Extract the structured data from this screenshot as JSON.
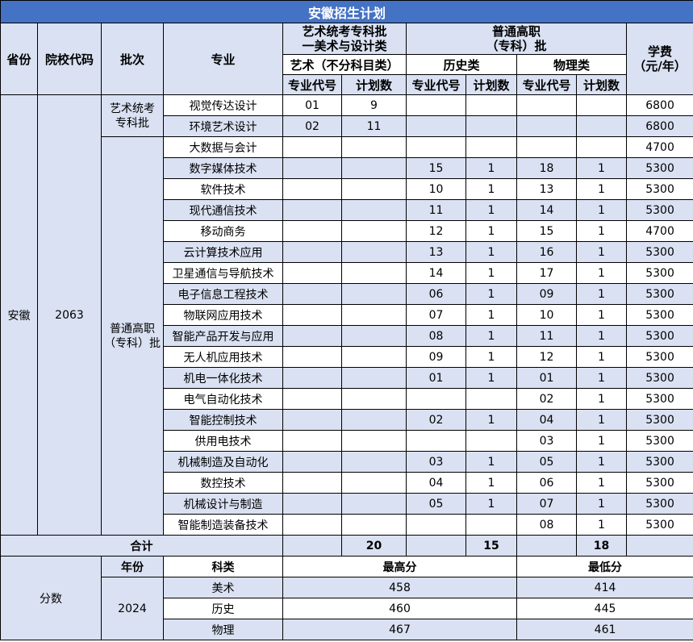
{
  "title": "安徽招生计划",
  "headers": {
    "province": "省份",
    "code": "院校代码",
    "batch": "批次",
    "major": "专业",
    "art_batch": "艺术统考专科批\n一美术与设计类",
    "general_batch": "普通高职\n（专科）批",
    "fee": "学费\n（元/年）",
    "art_sub": "艺术（不分科目类）",
    "history": "历史类",
    "physics": "物理类",
    "major_code": "专业代号",
    "plan": "计划数"
  },
  "province": "安徽",
  "school_code": "2063",
  "batches": [
    "艺术统考\n专科批",
    "普通高职\n（专科）批"
  ],
  "rows": [
    [
      "视觉传达设计",
      "01",
      "9",
      "",
      "",
      "",
      "",
      "6800"
    ],
    [
      "环境艺术设计",
      "02",
      "11",
      "",
      "",
      "",
      "",
      "6800"
    ],
    [
      "大数据与会计",
      "",
      "",
      "",
      "",
      "",
      "",
      "4700"
    ],
    [
      "数字媒体技术",
      "",
      "",
      "15",
      "1",
      "18",
      "1",
      "5300"
    ],
    [
      "软件技术",
      "",
      "",
      "10",
      "1",
      "13",
      "1",
      "5300"
    ],
    [
      "现代通信技术",
      "",
      "",
      "11",
      "1",
      "14",
      "1",
      "5300"
    ],
    [
      "移动商务",
      "",
      "",
      "12",
      "1",
      "15",
      "1",
      "4700"
    ],
    [
      "云计算技术应用",
      "",
      "",
      "13",
      "1",
      "16",
      "1",
      "5300"
    ],
    [
      "卫星通信与导航技术",
      "",
      "",
      "14",
      "1",
      "17",
      "1",
      "5300"
    ],
    [
      "电子信息工程技术",
      "",
      "",
      "06",
      "1",
      "09",
      "1",
      "5300"
    ],
    [
      "物联网应用技术",
      "",
      "",
      "07",
      "1",
      "10",
      "1",
      "5300"
    ],
    [
      "智能产品开发与应用",
      "",
      "",
      "08",
      "1",
      "11",
      "1",
      "5300"
    ],
    [
      "无人机应用技术",
      "",
      "",
      "09",
      "1",
      "12",
      "1",
      "5300"
    ],
    [
      "机电一体化技术",
      "",
      "",
      "01",
      "1",
      "01",
      "1",
      "5300"
    ],
    [
      "电气自动化技术",
      "",
      "",
      "",
      "",
      "02",
      "1",
      "5300"
    ],
    [
      "智能控制技术",
      "",
      "",
      "02",
      "1",
      "04",
      "1",
      "5300"
    ],
    [
      "供用电技术",
      "",
      "",
      "",
      "",
      "03",
      "1",
      "5300"
    ],
    [
      "机械制造及自动化",
      "",
      "",
      "03",
      "1",
      "05",
      "1",
      "5300"
    ],
    [
      "数控技术",
      "",
      "",
      "04",
      "1",
      "06",
      "1",
      "5300"
    ],
    [
      "机械设计与制造",
      "",
      "",
      "05",
      "1",
      "07",
      "1",
      "5300"
    ],
    [
      "智能制造装备技术",
      "",
      "",
      "",
      "",
      "08",
      "1",
      "5300"
    ]
  ],
  "total": {
    "label": "合计",
    "art": "20",
    "history": "15",
    "physics": "18"
  },
  "scores": {
    "label": "分数",
    "year_h": "年份",
    "type_h": "科类",
    "max_h": "最高分",
    "min_h": "最低分",
    "year": "2024",
    "rows": [
      [
        "美术",
        "458",
        "414"
      ],
      [
        "历史",
        "460",
        "445"
      ],
      [
        "物理",
        "467",
        "461"
      ]
    ]
  }
}
